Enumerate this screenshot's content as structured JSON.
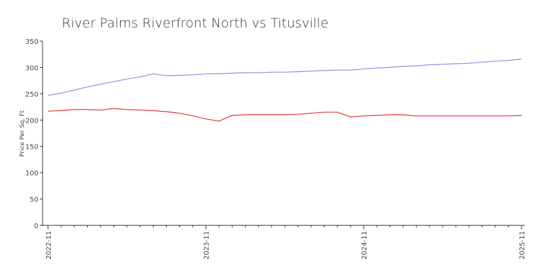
{
  "chart_data": {
    "type": "line",
    "title": "River Palms Riverfront North vs Titusville",
    "y_label": "Price Per Sq. Ft",
    "categories": [
      "2022-11",
      null,
      null,
      null,
      null,
      null,
      null,
      null,
      null,
      null,
      null,
      null,
      "2023-11",
      null,
      null,
      null,
      null,
      null,
      null,
      null,
      null,
      null,
      null,
      null,
      "2024-11",
      null,
      null,
      null,
      null,
      null,
      null,
      null,
      null,
      null,
      null,
      null,
      "2025-11"
    ],
    "series": [
      {
        "color": "#8b8fe8",
        "values": [
          247,
          251,
          257,
          263,
          268,
          273,
          278,
          282,
          288,
          284,
          285,
          286,
          288,
          288,
          289,
          290,
          290,
          291,
          291,
          292,
          293,
          294,
          295,
          295,
          297,
          299,
          300,
          302,
          303,
          305,
          306,
          307,
          308,
          310,
          312,
          313,
          316
        ]
      },
      {
        "color": "#e8343c",
        "values": [
          217,
          218,
          220,
          220,
          219,
          222,
          220,
          219,
          218,
          216,
          213,
          208,
          202,
          198,
          209,
          210,
          210,
          210,
          210,
          211,
          213,
          215,
          215,
          206,
          208,
          209,
          210,
          210,
          208,
          208,
          208,
          208,
          208,
          208,
          208,
          208,
          209
        ]
      }
    ],
    "ylim": [
      0,
      350
    ],
    "yticks": [
      0,
      50,
      100,
      150,
      200,
      250,
      300,
      350
    ],
    "grid": false
  }
}
